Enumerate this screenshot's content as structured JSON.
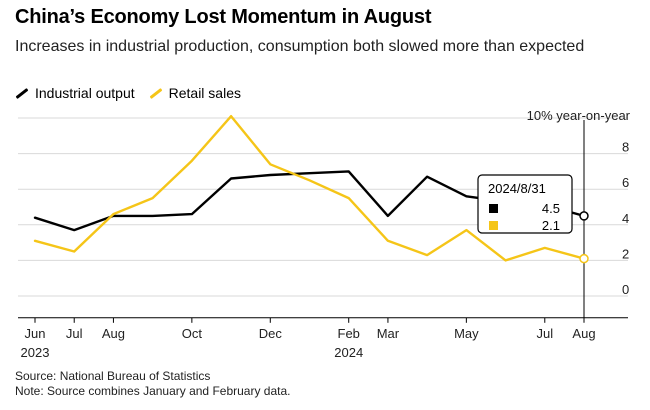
{
  "title": "China’s Economy Lost Momentum in August",
  "subtitle": "Increases in industrial production, consumption both slowed more than expected",
  "footer": {
    "source": "Source: National Bureau of Statistics",
    "note": "Note: Source combines January and February data."
  },
  "colors": {
    "industrial": "#000000",
    "retail": "#f5c518",
    "grid": "#d9d9d9",
    "axis": "#000000"
  },
  "chart_data": {
    "type": "line",
    "title": "China’s Economy Lost Momentum in August",
    "subtitle": "Increases in industrial production, consumption both slowed more than expected",
    "ylabel": "10% year-on-year",
    "ylim": [
      -1,
      10
    ],
    "yticks": [
      0,
      2,
      4,
      6,
      8
    ],
    "x": [
      "2023-06",
      "2023-07",
      "2023-08",
      "2023-09",
      "2023-10",
      "2023-11",
      "2023-12",
      "2024-01",
      "2024-02",
      "2024-03",
      "2024-04",
      "2024-05",
      "2024-06",
      "2024-07",
      "2024-08"
    ],
    "xticks": [
      {
        "x": "2023-06",
        "label": "Jun",
        "sub": "2023"
      },
      {
        "x": "2023-07",
        "label": "Jul",
        "sub": ""
      },
      {
        "x": "2023-08",
        "label": "Aug",
        "sub": ""
      },
      {
        "x": "2023-10",
        "label": "Oct",
        "sub": ""
      },
      {
        "x": "2023-12",
        "label": "Dec",
        "sub": ""
      },
      {
        "x": "2024-02",
        "label": "Feb",
        "sub": "2024"
      },
      {
        "x": "2024-03",
        "label": "Mar",
        "sub": ""
      },
      {
        "x": "2024-05",
        "label": "May",
        "sub": ""
      },
      {
        "x": "2024-07",
        "label": "Jul",
        "sub": ""
      },
      {
        "x": "2024-08",
        "label": "Aug",
        "sub": ""
      }
    ],
    "series": [
      {
        "name": "Industrial output",
        "color": "#000000",
        "values": [
          4.4,
          3.7,
          4.5,
          4.5,
          4.6,
          6.6,
          6.8,
          6.9,
          7.0,
          4.5,
          6.7,
          5.6,
          5.3,
          5.1,
          4.5
        ]
      },
      {
        "name": "Retail sales",
        "color": "#f5c518",
        "values": [
          3.1,
          2.5,
          4.6,
          5.5,
          7.6,
          10.1,
          7.4,
          6.5,
          5.5,
          3.1,
          2.3,
          3.7,
          2.0,
          2.7,
          2.1
        ]
      }
    ],
    "tooltip": {
      "date": "2024/8/31",
      "values": [
        "4.5",
        "2.1"
      ]
    },
    "grid": true,
    "legend": "top-left"
  }
}
